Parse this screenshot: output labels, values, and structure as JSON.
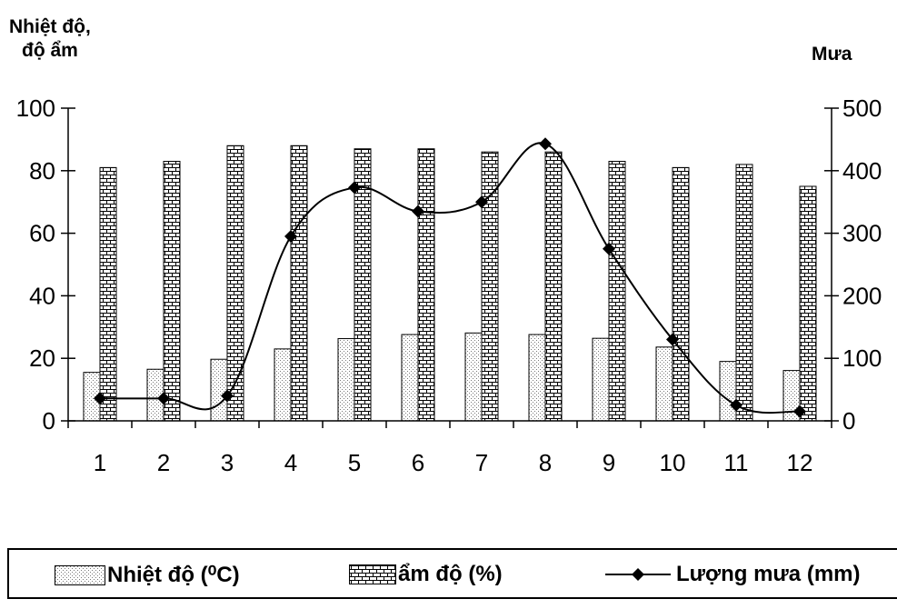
{
  "left_axis_title": [
    "Nhiệt độ,",
    "độ ẩm"
  ],
  "right_axis_title": "Mưa",
  "chart_data": {
    "type": "bar",
    "categories": [
      "1",
      "2",
      "3",
      "4",
      "5",
      "6",
      "7",
      "8",
      "9",
      "10",
      "11",
      "12"
    ],
    "series": [
      {
        "name": "Nhiệt độ (⁰C)",
        "type": "bar",
        "axis": "left",
        "pattern": "dots",
        "values": [
          15.5,
          16.5,
          19.7,
          23,
          26.3,
          27.6,
          28.1,
          27.6,
          26.4,
          23.6,
          19,
          16.1
        ]
      },
      {
        "name": "ẩm độ (%)",
        "type": "bar",
        "axis": "left",
        "pattern": "bricks",
        "values": [
          81,
          83,
          88,
          88,
          87,
          87,
          86,
          86,
          83,
          81,
          82,
          75
        ]
      },
      {
        "name": "Lượng mưa (mm)",
        "type": "line",
        "axis": "right",
        "marker": "diamond",
        "values": [
          36,
          36,
          40,
          295,
          373,
          335,
          350,
          443,
          275,
          130,
          25,
          15
        ]
      }
    ],
    "y_left": {
      "min": 0,
      "max": 100,
      "ticks": [
        "0",
        "20",
        "40",
        "60",
        "80",
        "100"
      ]
    },
    "y_right": {
      "min": 0,
      "max": 500,
      "ticks": [
        "0",
        "100",
        "200",
        "300",
        "400",
        "500"
      ]
    },
    "grid": false,
    "legend_position": "bottom"
  },
  "legend": {
    "temp": "Nhiệt độ (⁰C)",
    "humidity": "ẩm độ (%)",
    "rain": "Lượng mưa (mm)"
  }
}
